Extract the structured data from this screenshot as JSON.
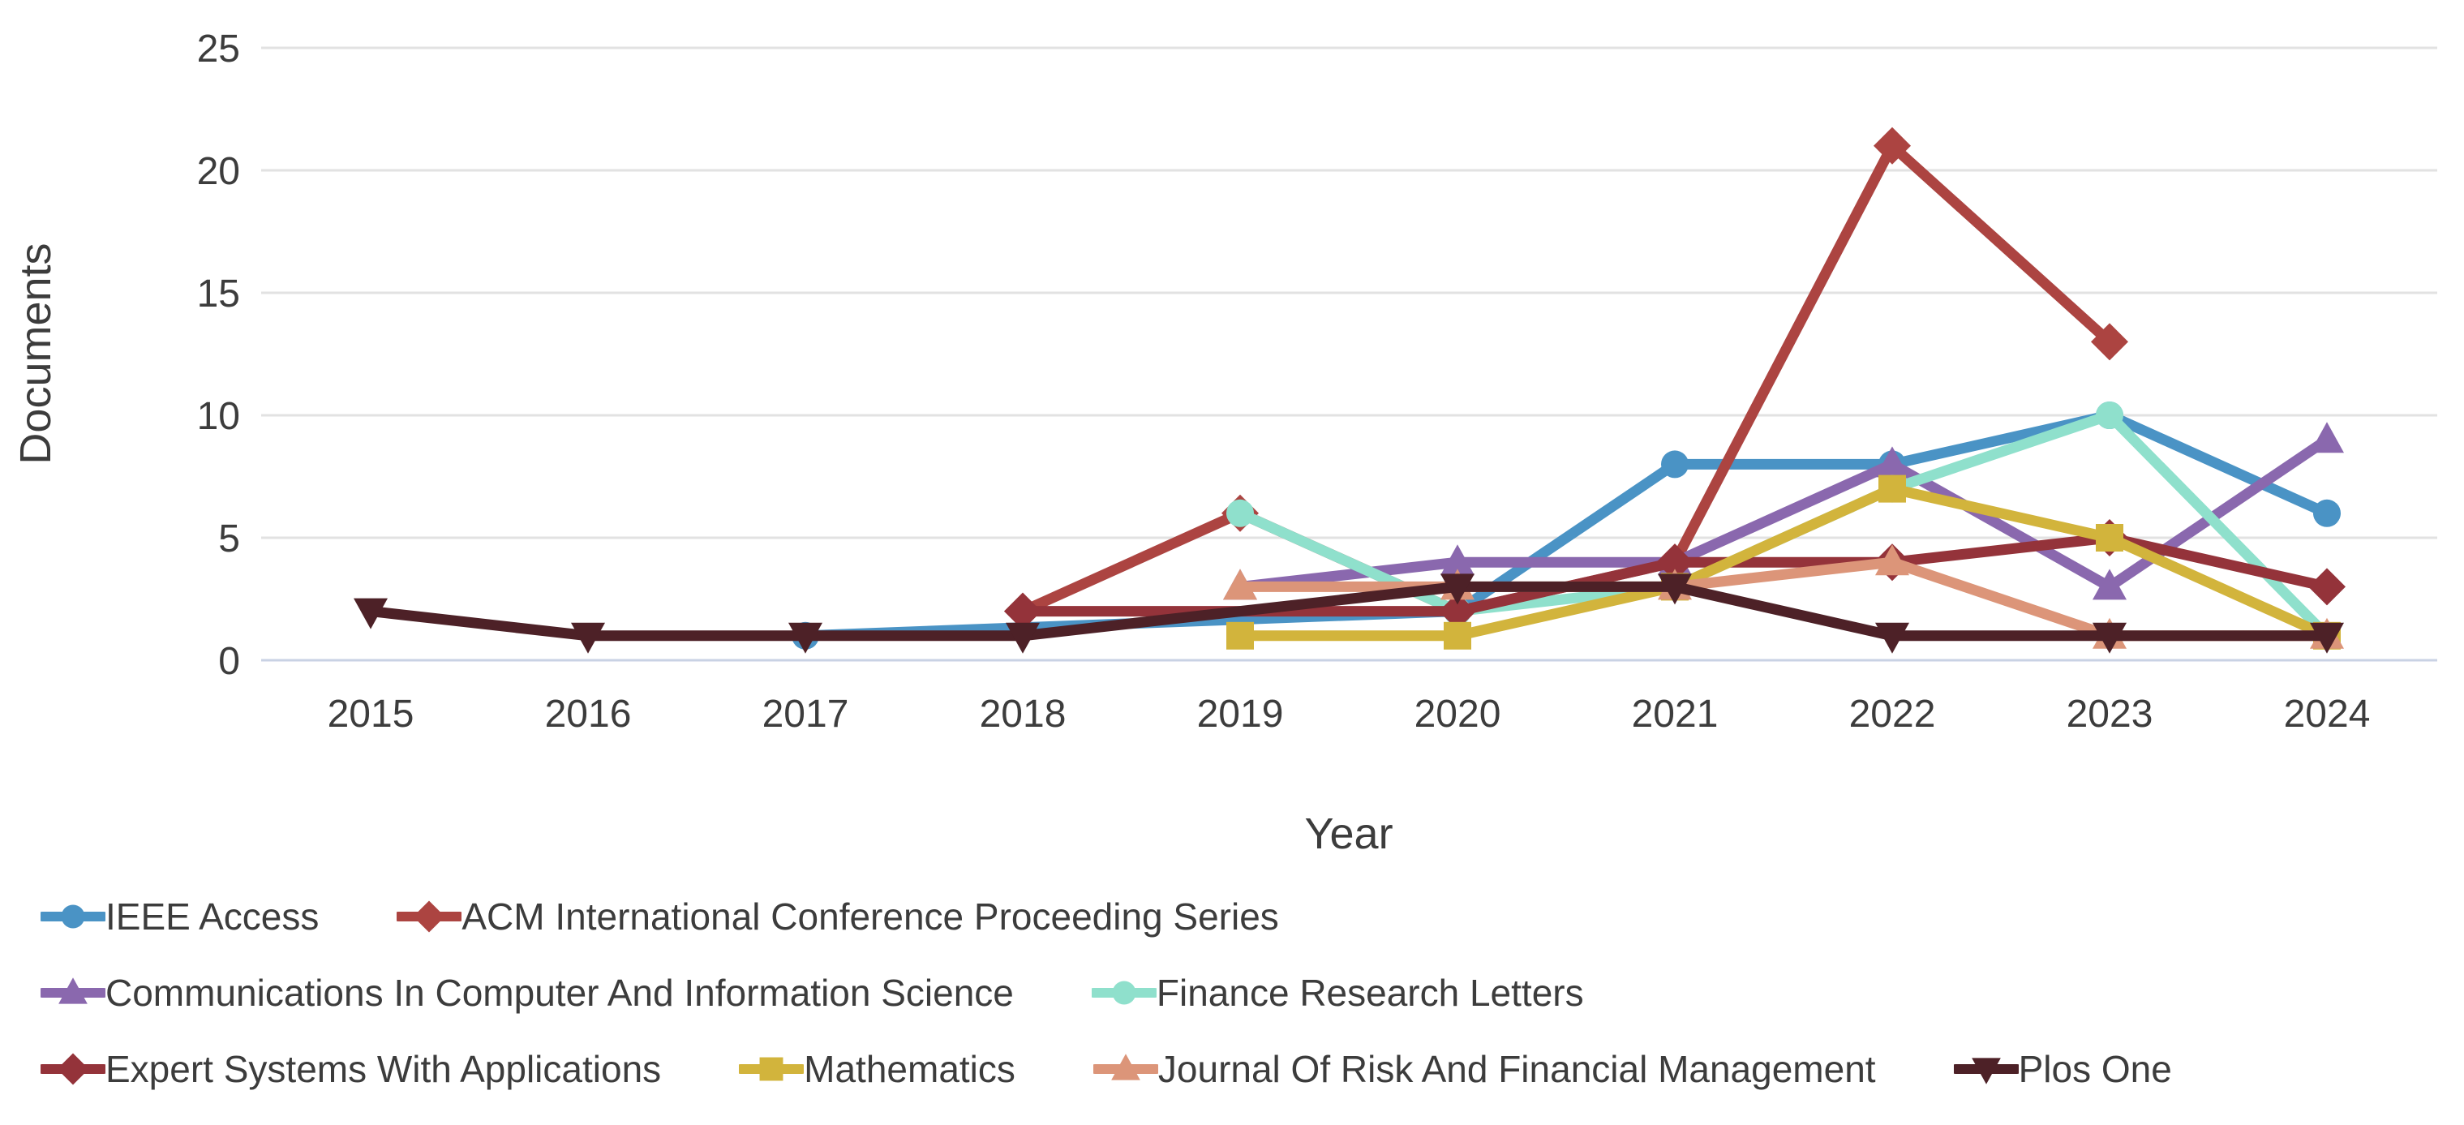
{
  "chart_data": {
    "type": "line",
    "title": "",
    "xlabel": "Year",
    "ylabel": "Documents",
    "categories": [
      2015,
      2016,
      2017,
      2018,
      2019,
      2020,
      2021,
      2022,
      2023,
      2024
    ],
    "y_ticks": [
      0,
      5,
      10,
      15,
      20,
      25
    ],
    "ylim": [
      0,
      25
    ],
    "grid": "horizontal",
    "legend_position": "bottom-left",
    "legend_rows": [
      [
        0,
        1
      ],
      [
        2,
        3
      ],
      [
        4,
        5,
        6,
        7
      ]
    ],
    "axis_text_color": "#3c3c3c",
    "gridline_color": "#e2e2e2",
    "axis_line_color": "#c9d2e4",
    "series": [
      {
        "name": "IEEE Access",
        "color": "#4a93c5",
        "marker": "circle",
        "values": [
          null,
          null,
          1,
          null,
          null,
          2,
          8,
          8,
          10,
          6
        ]
      },
      {
        "name": "ACM International Conference Proceeding Series",
        "color": "#ac4441",
        "marker": "diamond",
        "values": [
          null,
          null,
          null,
          2,
          6,
          2,
          4,
          21,
          13,
          null
        ]
      },
      {
        "name": "Communications In Computer And Information Science",
        "color": "#8a68ae",
        "marker": "triangle-up",
        "values": [
          null,
          null,
          null,
          null,
          3,
          4,
          4,
          8,
          3,
          9
        ]
      },
      {
        "name": "Finance Research Letters",
        "color": "#8fe0cc",
        "marker": "circle",
        "values": [
          null,
          null,
          null,
          null,
          6,
          2,
          3,
          7,
          10,
          1
        ]
      },
      {
        "name": "Expert Systems With Applications",
        "color": "#94333a",
        "marker": "diamond",
        "values": [
          null,
          null,
          null,
          2,
          null,
          2,
          4,
          4,
          5,
          3
        ]
      },
      {
        "name": "Mathematics",
        "color": "#d2b43c",
        "marker": "square",
        "values": [
          null,
          null,
          null,
          null,
          1,
          1,
          3,
          7,
          5,
          1
        ]
      },
      {
        "name": "Journal Of Risk And Financial Management",
        "color": "#dc9579",
        "marker": "triangle-up",
        "values": [
          null,
          null,
          null,
          null,
          3,
          3,
          3,
          4,
          1,
          1
        ]
      },
      {
        "name": "Plos One",
        "color": "#4d2127",
        "marker": "triangle-down",
        "values": [
          2,
          1,
          1,
          1,
          null,
          3,
          3,
          1,
          1,
          1
        ]
      }
    ]
  }
}
